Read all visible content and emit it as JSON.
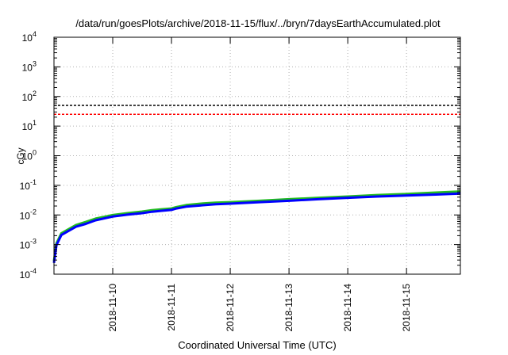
{
  "chart_data": {
    "type": "line",
    "title": "/data/run/goesPlots/archive/2018-11-15/flux/../bryn/7daysEarthAccumulated.plot",
    "xlabel": "Coordinated Universal Time (UTC)",
    "ylabel": "cGy",
    "y_scale": "log",
    "ylim": [
      0.0001,
      10000
    ],
    "xlim": [
      "2018-11-09T00:00",
      "2018-11-15T22:00"
    ],
    "x_ticks": [
      "2018-11-10",
      "2018-11-11",
      "2018-11-12",
      "2018-11-13",
      "2018-11-14",
      "2018-11-15"
    ],
    "y_ticks": [
      {
        "base": "10",
        "exp": "-4"
      },
      {
        "base": "10",
        "exp": "-3"
      },
      {
        "base": "10",
        "exp": "-2"
      },
      {
        "base": "10",
        "exp": "-1"
      },
      {
        "base": "10",
        "exp": "0"
      },
      {
        "base": "10",
        "exp": "1"
      },
      {
        "base": "10",
        "exp": "2"
      },
      {
        "base": "10",
        "exp": "3"
      },
      {
        "base": "10",
        "exp": "4"
      }
    ],
    "grid": true,
    "reference_lines": [
      {
        "y": 50,
        "color": "#000000",
        "style": "dashed"
      },
      {
        "y": 25,
        "color": "#ff0000",
        "style": "dashed"
      }
    ],
    "series": [
      {
        "color": "#22bb22",
        "x": [
          "2018-11-09T00:00",
          "2018-11-09T01:00",
          "2018-11-09T03:00",
          "2018-11-09T06:00",
          "2018-11-09T09:00",
          "2018-11-09T13:00",
          "2018-11-09T17:00",
          "2018-11-09T21:00",
          "2018-11-10T00:00",
          "2018-11-10T06:00",
          "2018-11-10T12:00",
          "2018-11-10T16:00",
          "2018-11-10T20:00",
          "2018-11-11T00:00",
          "2018-11-11T02:00",
          "2018-11-11T06:00",
          "2018-11-11T12:00",
          "2018-11-11T18:00",
          "2018-11-12T00:00",
          "2018-11-12T12:00",
          "2018-11-13T00:00",
          "2018-11-13T12:00",
          "2018-11-14T00:00",
          "2018-11-14T12:00",
          "2018-11-15T00:00",
          "2018-11-15T12:00",
          "2018-11-15T22:00"
        ],
        "y": [
          0.00028,
          0.0011,
          0.0024,
          0.0033,
          0.0046,
          0.0058,
          0.0075,
          0.0088,
          0.0099,
          0.0115,
          0.013,
          0.0145,
          0.0155,
          0.0165,
          0.0185,
          0.0215,
          0.024,
          0.026,
          0.027,
          0.03,
          0.034,
          0.038,
          0.042,
          0.047,
          0.051,
          0.057,
          0.062
        ]
      },
      {
        "color": "#0000ff",
        "x": [
          "2018-11-09T00:00",
          "2018-11-09T01:00",
          "2018-11-09T03:00",
          "2018-11-09T06:00",
          "2018-11-09T09:00",
          "2018-11-09T13:00",
          "2018-11-09T17:00",
          "2018-11-09T21:00",
          "2018-11-10T00:00",
          "2018-11-10T06:00",
          "2018-11-10T12:00",
          "2018-11-10T16:00",
          "2018-11-10T20:00",
          "2018-11-11T00:00",
          "2018-11-11T02:00",
          "2018-11-11T06:00",
          "2018-11-11T12:00",
          "2018-11-11T18:00",
          "2018-11-12T00:00",
          "2018-11-12T12:00",
          "2018-11-13T00:00",
          "2018-11-13T12:00",
          "2018-11-14T00:00",
          "2018-11-14T12:00",
          "2018-11-15T00:00",
          "2018-11-15T12:00",
          "2018-11-15T22:00"
        ],
        "y": [
          0.00024,
          0.00095,
          0.0021,
          0.0029,
          0.004,
          0.005,
          0.0066,
          0.0078,
          0.0088,
          0.0102,
          0.0115,
          0.0128,
          0.0138,
          0.0148,
          0.0165,
          0.019,
          0.021,
          0.023,
          0.024,
          0.027,
          0.03,
          0.034,
          0.038,
          0.042,
          0.045,
          0.049,
          0.053
        ]
      }
    ]
  }
}
